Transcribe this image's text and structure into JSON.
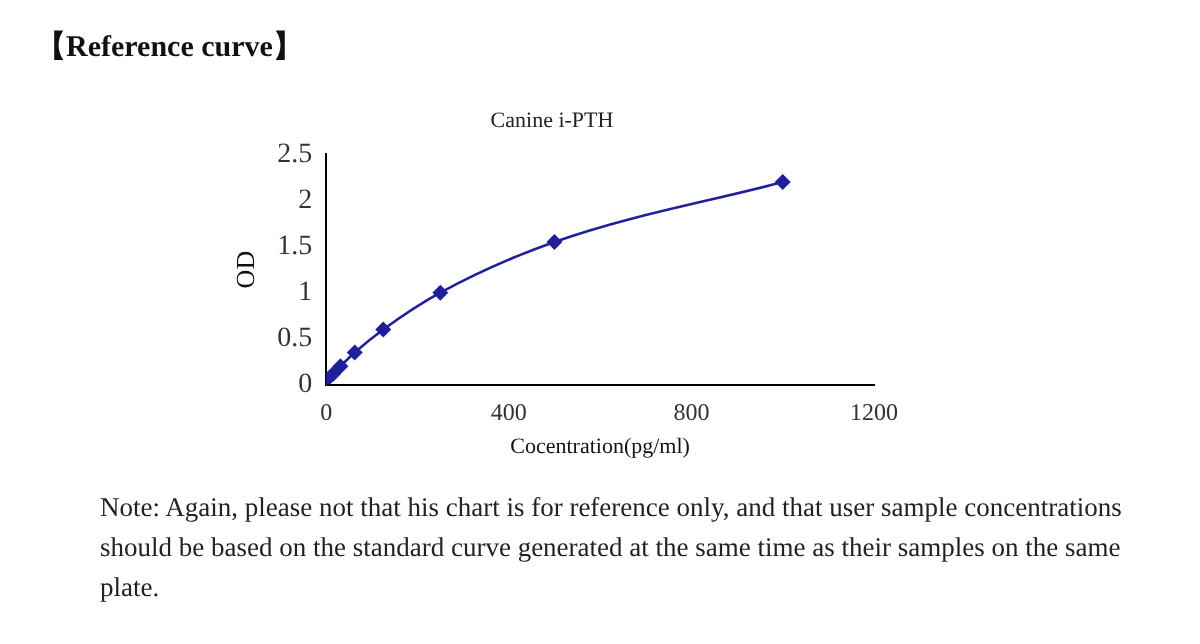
{
  "chart_data": {
    "type": "line",
    "title": "Canine i-PTH",
    "xlabel": "Cocentration(pg/ml)",
    "ylabel": "OD",
    "x": [
      0,
      15.6,
      31.2,
      62.5,
      125,
      250,
      500,
      1000
    ],
    "series": [
      {
        "color": "#1f1f99",
        "values": [
          0.05,
          0.12,
          0.2,
          0.35,
          0.6,
          1.0,
          1.55,
          2.2
        ]
      }
    ],
    "xlim": [
      0,
      1200
    ],
    "xticks": [
      0,
      400,
      800,
      1200
    ],
    "ylim": [
      0,
      2.5
    ],
    "yticks": [
      0,
      0.5,
      1,
      1.5,
      2,
      2.5
    ],
    "grid": false,
    "legend": false,
    "marker": "diamond",
    "line_style": "solid",
    "annotations": [
      "【Reference curve】",
      "Note: Again, please not that his chart is for reference only, and that user sample concentrations should be based on the standard curve generated at the same time as their samples on the same plate."
    ]
  }
}
